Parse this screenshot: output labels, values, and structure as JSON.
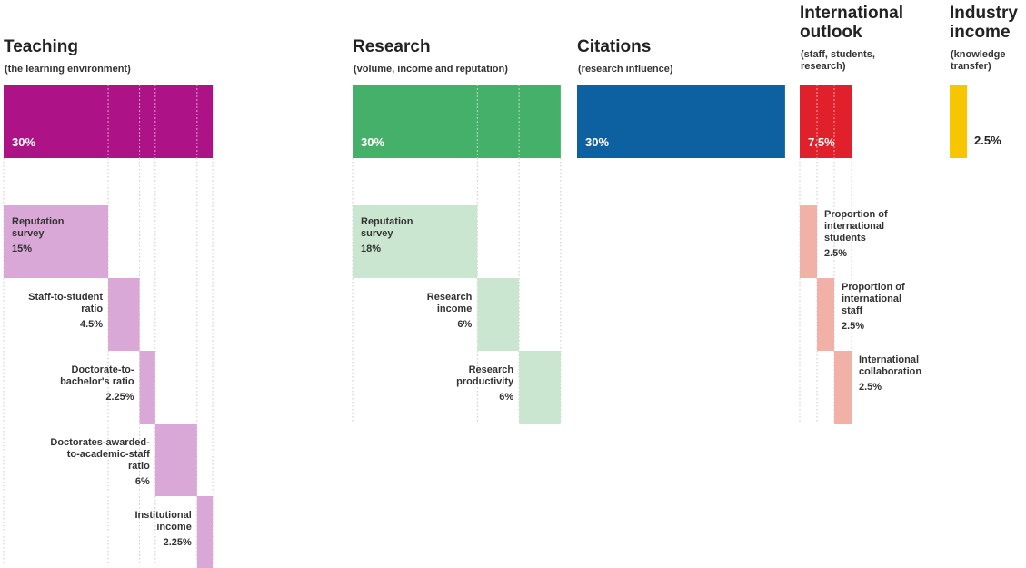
{
  "chart_data": {
    "type": "bar",
    "pillars": [
      {
        "id": "teaching",
        "title": [
          "Teaching"
        ],
        "subtitle": [
          "(the learning environment)"
        ],
        "weight": 30,
        "weight_label": "30%",
        "color": "#ad1387",
        "sub_color": "#d9a8d6",
        "components": [
          {
            "label": [
              "Reputation",
              "survey"
            ],
            "weight": 15,
            "weight_label": "15%"
          },
          {
            "label": [
              "Staff-to-student",
              "ratio"
            ],
            "weight": 4.5,
            "weight_label": "4.5%"
          },
          {
            "label": [
              "Doctorate-to-",
              "bachelor's ratio"
            ],
            "weight": 2.25,
            "weight_label": "2.25%"
          },
          {
            "label": [
              "Doctorates-awarded-",
              "to-academic-staff",
              "ratio"
            ],
            "weight": 6,
            "weight_label": "6%"
          },
          {
            "label": [
              "Institutional",
              "income"
            ],
            "weight": 2.25,
            "weight_label": "2.25%"
          }
        ]
      },
      {
        "id": "research",
        "title": [
          "Research"
        ],
        "subtitle": [
          "(volume, income and reputation)"
        ],
        "weight": 30,
        "weight_label": "30%",
        "color": "#45b06a",
        "sub_color": "#cbe6d0",
        "components": [
          {
            "label": [
              "Reputation",
              "survey"
            ],
            "weight": 18,
            "weight_label": "18%"
          },
          {
            "label": [
              "Research",
              "income"
            ],
            "weight": 6,
            "weight_label": "6%"
          },
          {
            "label": [
              "Research",
              "productivity"
            ],
            "weight": 6,
            "weight_label": "6%"
          }
        ]
      },
      {
        "id": "citations",
        "title": [
          "Citations"
        ],
        "subtitle": [
          "(research influence)"
        ],
        "weight": 30,
        "weight_label": "30%",
        "color": "#0e61a0",
        "sub_color": "#0e61a0",
        "components": []
      },
      {
        "id": "international",
        "title": [
          "International",
          "outlook"
        ],
        "subtitle": [
          "(staff, students,",
          "research)"
        ],
        "weight": 7.5,
        "weight_label": "7.5%",
        "color": "#e0202a",
        "sub_color": "#f2b1a6",
        "components": [
          {
            "label": [
              "Proportion of",
              "international",
              "students"
            ],
            "weight": 2.5,
            "weight_label": "2.5%"
          },
          {
            "label": [
              "Proportion of",
              "international",
              "staff"
            ],
            "weight": 2.5,
            "weight_label": "2.5%"
          },
          {
            "label": [
              "International",
              "collaboration"
            ],
            "weight": 2.5,
            "weight_label": "2.5%"
          }
        ]
      },
      {
        "id": "industry",
        "title": [
          "Industry",
          "income"
        ],
        "subtitle": [
          "(knowledge",
          "transfer)"
        ],
        "weight": 2.5,
        "weight_label": "2.5%",
        "color": "#f7c600",
        "sub_color": "#f7c600",
        "components": []
      }
    ]
  }
}
